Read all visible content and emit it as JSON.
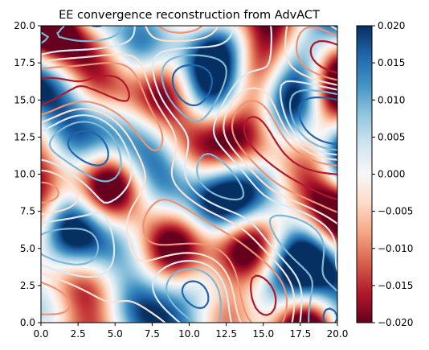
{
  "chart_data": {
    "type": "heatmap",
    "title": "EE convergence reconstruction from AdvACT",
    "xlabel": "",
    "ylabel": "",
    "xlim": [
      0.0,
      20.0
    ],
    "ylim": [
      0.0,
      20.0
    ],
    "x_ticks": [
      "0.0",
      "2.5",
      "5.0",
      "7.5",
      "10.0",
      "12.5",
      "15.0",
      "17.5",
      "20.0"
    ],
    "y_ticks": [
      "0.0",
      "2.5",
      "5.0",
      "7.5",
      "10.0",
      "12.5",
      "15.0",
      "17.5",
      "20.0"
    ],
    "colormap": "RdBu",
    "color_range": [
      -0.02,
      0.02
    ],
    "colorbar_ticks": [
      "0.020",
      "0.015",
      "0.010",
      "0.005",
      "0.000",
      "−0.005",
      "−0.010",
      "−0.015",
      "−0.020"
    ],
    "overlay": "contour lines (RdBu colored)",
    "grid": false
  }
}
